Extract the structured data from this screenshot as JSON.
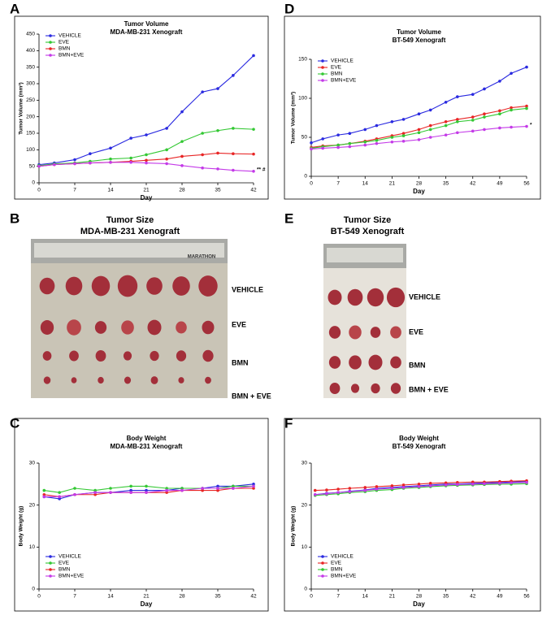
{
  "chart_data": [
    {
      "type": "line",
      "panel": "A",
      "title": "Tumor Volume",
      "subtitle": "MDA-MB-231 Xenograft",
      "x_label": "Day",
      "y_label": "Tumor Volume (mm³)",
      "x": [
        0,
        3,
        7,
        10,
        14,
        18,
        21,
        25,
        28,
        32,
        35,
        38,
        42
      ],
      "xlim": [
        0,
        42
      ],
      "xticks": [
        0,
        7,
        14,
        21,
        28,
        35,
        42
      ],
      "ylim": [
        0,
        450
      ],
      "yticks": [
        0,
        50,
        100,
        150,
        200,
        250,
        300,
        350,
        400,
        450
      ],
      "legend": "top-left",
      "annotations": [
        "** #"
      ],
      "series": [
        {
          "name": "VEHICLE",
          "color": "#2a2ae0",
          "values": [
            55,
            60,
            70,
            88,
            105,
            135,
            145,
            165,
            215,
            275,
            285,
            325,
            385
          ]
        },
        {
          "name": "EVE",
          "color": "#33c833",
          "values": [
            52,
            57,
            60,
            65,
            72,
            75,
            85,
            100,
            125,
            150,
            158,
            165,
            162
          ]
        },
        {
          "name": "BMN",
          "color": "#e82525",
          "values": [
            50,
            55,
            58,
            60,
            62,
            65,
            68,
            72,
            80,
            85,
            90,
            88,
            87
          ]
        },
        {
          "name": "BMN+EVE",
          "color": "#c43ae8",
          "values": [
            50,
            55,
            58,
            60,
            62,
            62,
            60,
            58,
            52,
            45,
            42,
            38,
            35
          ]
        }
      ]
    },
    {
      "type": "line",
      "panel": "D",
      "title": "Tumor Volume",
      "subtitle": "BT-549 Xenograft",
      "x_label": "Day",
      "y_label": "Tumor Volume (mm³)",
      "x": [
        0,
        3,
        7,
        10,
        14,
        17,
        21,
        24,
        28,
        31,
        35,
        38,
        42,
        45,
        49,
        52,
        56
      ],
      "xlim": [
        0,
        56
      ],
      "xticks": [
        0,
        7,
        14,
        21,
        28,
        35,
        42,
        49,
        56
      ],
      "ylim": [
        0,
        150
      ],
      "yticks": [
        0,
        50,
        100,
        150
      ],
      "legend": "top-left",
      "annotations": [
        "*"
      ],
      "series": [
        {
          "name": "VEHICLE",
          "color": "#2a2ae0",
          "values": [
            43,
            48,
            53,
            55,
            60,
            65,
            70,
            73,
            80,
            85,
            95,
            102,
            105,
            112,
            122,
            132,
            140
          ]
        },
        {
          "name": "EVE",
          "color": "#e82525",
          "values": [
            37,
            39,
            40,
            42,
            45,
            48,
            52,
            55,
            60,
            65,
            70,
            73,
            76,
            80,
            84,
            88,
            90
          ]
        },
        {
          "name": "BMN",
          "color": "#33c833",
          "values": [
            36,
            38,
            40,
            42,
            44,
            46,
            50,
            52,
            56,
            60,
            65,
            70,
            72,
            76,
            80,
            85,
            87
          ]
        },
        {
          "name": "BMN+EVE",
          "color": "#c43ae8",
          "values": [
            35,
            36,
            37,
            38,
            40,
            42,
            44,
            45,
            47,
            50,
            53,
            56,
            58,
            60,
            62,
            63,
            64
          ]
        }
      ]
    },
    {
      "type": "line",
      "panel": "C",
      "title": "Body Weight",
      "subtitle": "MDA-MB-231 Xenograft",
      "x_label": "Day",
      "y_label": "Body Weight (g)",
      "x": [
        1,
        4,
        7,
        11,
        14,
        18,
        21,
        25,
        28,
        32,
        35,
        38,
        42
      ],
      "xlim": [
        0,
        42
      ],
      "xticks": [
        0,
        7,
        14,
        21,
        28,
        35,
        42
      ],
      "ylim": [
        0,
        30
      ],
      "yticks": [
        0,
        10,
        20,
        30
      ],
      "legend": "bottom-left",
      "series": [
        {
          "name": "VEHICLE",
          "color": "#2a2ae0",
          "values": [
            22,
            21.5,
            22.5,
            23,
            23,
            23.5,
            23.5,
            23.5,
            24,
            24,
            24.5,
            24.5,
            25
          ]
        },
        {
          "name": "EVE",
          "color": "#33c833",
          "values": [
            23.5,
            23,
            24,
            23.5,
            24,
            24.5,
            24.5,
            24,
            24,
            24,
            24,
            24.5,
            24.5
          ]
        },
        {
          "name": "BMN",
          "color": "#e82525",
          "values": [
            22.5,
            22,
            22.5,
            22.5,
            23,
            23,
            23,
            23,
            23.5,
            23.5,
            23.5,
            24,
            24
          ]
        },
        {
          "name": "BMN+EVE",
          "color": "#c43ae8",
          "values": [
            22,
            22,
            22.5,
            23,
            23,
            23,
            23,
            23.5,
            23.5,
            24,
            24,
            24,
            24.5
          ]
        }
      ]
    },
    {
      "type": "line",
      "panel": "F",
      "title": "Body Weight",
      "subtitle": "BT-549 Xenograft",
      "x_label": "Day",
      "y_label": "Body Weight (g)",
      "x": [
        1,
        4,
        7,
        10,
        14,
        17,
        21,
        24,
        28,
        31,
        35,
        38,
        42,
        45,
        49,
        52,
        56
      ],
      "xlim": [
        0,
        56
      ],
      "xticks": [
        0,
        7,
        14,
        21,
        28,
        35,
        42,
        49,
        56
      ],
      "ylim": [
        0,
        30
      ],
      "yticks": [
        0,
        10,
        20,
        30
      ],
      "legend": "bottom-left",
      "series": [
        {
          "name": "VEHICLE",
          "color": "#2a2ae0",
          "values": [
            22.5,
            22.8,
            23,
            23.3,
            23.6,
            24,
            24.2,
            24.4,
            24.6,
            24.8,
            25,
            25,
            25.2,
            25.3,
            25.4,
            25.5,
            25.6
          ]
        },
        {
          "name": "EVE",
          "color": "#e82525",
          "values": [
            23.5,
            23.6,
            23.8,
            24,
            24.2,
            24.4,
            24.6,
            24.8,
            25,
            25.2,
            25.3,
            25.4,
            25.5,
            25.5,
            25.6,
            25.7,
            25.8
          ]
        },
        {
          "name": "BMN",
          "color": "#33c833",
          "values": [
            22.3,
            22.5,
            22.7,
            23,
            23.2,
            23.5,
            23.7,
            24,
            24.2,
            24.4,
            24.6,
            24.7,
            24.8,
            24.9,
            25,
            25,
            25.1
          ]
        },
        {
          "name": "BMN+EVE",
          "color": "#c43ae8",
          "values": [
            22.5,
            22.7,
            23,
            23.2,
            23.5,
            23.8,
            24,
            24.2,
            24.4,
            24.6,
            24.8,
            24.9,
            25,
            25.1,
            25.2,
            25.3,
            25.4
          ]
        }
      ]
    }
  ],
  "photos": [
    {
      "panel": "B",
      "title": "Tumor Size",
      "subtitle": "MDA-MB-231 Xenograft",
      "brand": "MARATHON",
      "rows": [
        "VEHICLE",
        "EVE",
        "BMN",
        "BMN + EVE"
      ]
    },
    {
      "panel": "E",
      "title": "Tumor Size",
      "subtitle": "BT-549 Xenograft",
      "rows": [
        "VEHICLE",
        "EVE",
        "BMN",
        "BMN + EVE"
      ]
    }
  ]
}
